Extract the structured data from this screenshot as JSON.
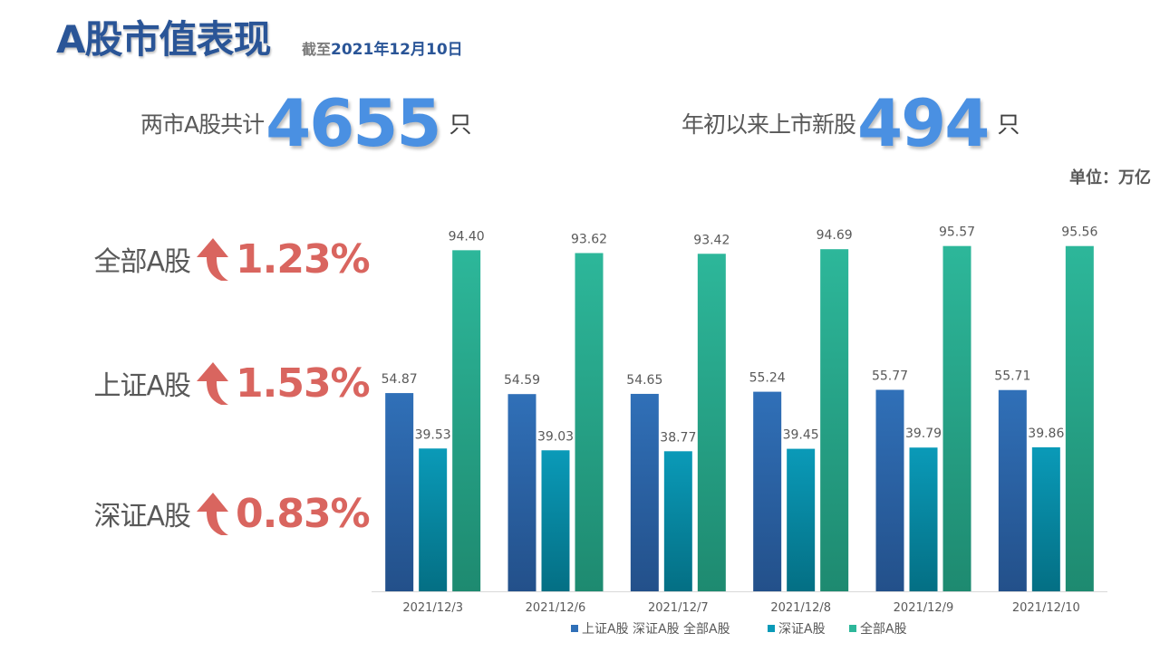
{
  "header": {
    "title": "A股市值表现",
    "asof_prefix": "截至",
    "asof_date": "2021年12月10日"
  },
  "stats": {
    "total": {
      "label": "两市A股共计",
      "value": "4655",
      "unit": "只"
    },
    "new_listings": {
      "label": "年初以来上市新股",
      "value": "494",
      "unit": "只"
    }
  },
  "unit_label": "单位：万亿",
  "changes": [
    {
      "label": "全部A股",
      "direction": "up",
      "value": "1.23%"
    },
    {
      "label": "上证A股",
      "direction": "up",
      "value": "1.53%"
    },
    {
      "label": "深证A股",
      "direction": "up",
      "value": "0.83%"
    }
  ],
  "colors": {
    "accent_blue": "#4a90e2",
    "title_blue": "#2a5597",
    "up_red": "#d9655f"
  },
  "chart_data": {
    "type": "bar",
    "categories": [
      "2021/12/3",
      "2021/12/6",
      "2021/12/7",
      "2021/12/8",
      "2021/12/9",
      "2021/12/10"
    ],
    "series": [
      {
        "name": "上证A股 深证A股 全部A股",
        "values": [
          54.87,
          54.59,
          54.65,
          55.24,
          55.77,
          55.71
        ],
        "color_top": "#3070b8",
        "color_bottom": "#23508a"
      },
      {
        "name": "深证A股",
        "values": [
          39.53,
          39.03,
          38.77,
          39.45,
          39.79,
          39.86
        ],
        "color_top": "#0a9ab8",
        "color_bottom": "#046f84"
      },
      {
        "name": "全部A股",
        "values": [
          94.4,
          93.62,
          93.42,
          94.69,
          95.57,
          95.56
        ],
        "color_top": "#2db79a",
        "color_bottom": "#1e8a70"
      }
    ],
    "ylim": [
      0,
      100
    ],
    "grid": false,
    "legend_position": "bottom",
    "value_labels": true
  }
}
